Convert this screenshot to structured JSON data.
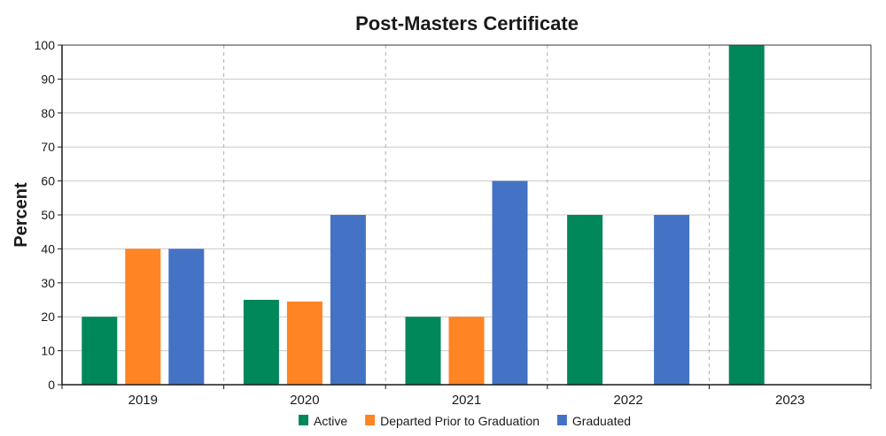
{
  "chart_data": {
    "type": "bar",
    "title": "Post-Masters Certificate",
    "ylabel": "Percent",
    "xlabel": "",
    "ylim": [
      0,
      100
    ],
    "yticks": [
      0,
      10,
      20,
      30,
      40,
      50,
      60,
      70,
      80,
      90,
      100
    ],
    "categories": [
      "2019",
      "2020",
      "2021",
      "2022",
      "2023"
    ],
    "series": [
      {
        "name": "Active",
        "color": "#00875a",
        "values": [
          20,
          25,
          20,
          50,
          100
        ]
      },
      {
        "name": "Departed Prior to Graduation",
        "color": "#ff8424",
        "values": [
          40,
          24.5,
          20,
          null,
          null
        ]
      },
      {
        "name": "Graduated",
        "color": "#4472c4",
        "values": [
          40,
          50,
          60,
          50,
          null
        ]
      }
    ],
    "grid": "horizontal solid, vertical dashed separators between categories",
    "legend_position": "bottom"
  }
}
